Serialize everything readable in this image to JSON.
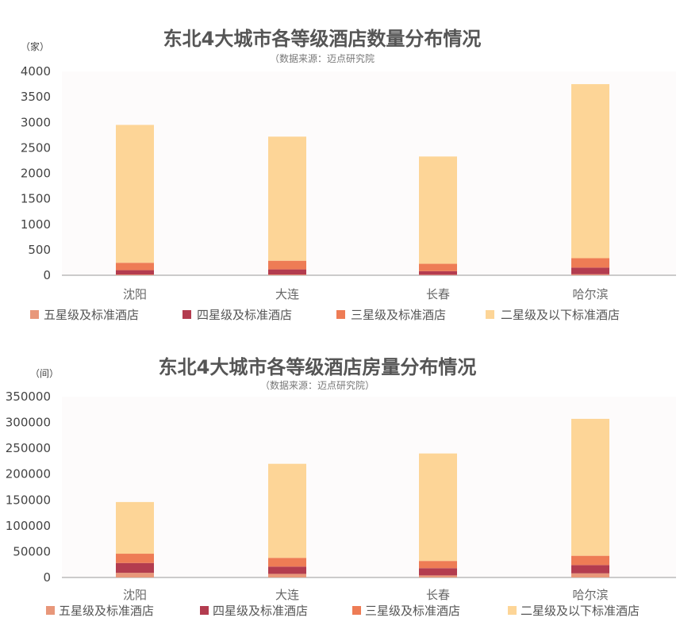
{
  "colors": {
    "five_star": "#E8977A",
    "four_star": "#B33C4F",
    "three_star": "#EE7C55",
    "two_star_below": "#FDD597",
    "axis": "#999999"
  },
  "chart_data": [
    {
      "type": "bar",
      "stacked": true,
      "title": "东北4大城市各等级酒店数量分布情况",
      "subtitle": "（数据来源：迈点研究院",
      "unit": "（家）",
      "categories": [
        "沈阳",
        "大连",
        "长春",
        "哈尔滨"
      ],
      "ylim": [
        0,
        4000
      ],
      "yticks": [
        "0",
        "500",
        "1000",
        "1500",
        "2000",
        "2500",
        "3000",
        "3500",
        "4000"
      ],
      "ytick_values": [
        0,
        500,
        1000,
        1500,
        2000,
        2500,
        3000,
        3500,
        4000
      ],
      "grid": false,
      "legend_position": "bottom",
      "series": [
        {
          "name": "五星级及标准酒店",
          "color_key": "five_star",
          "values": [
            15,
            15,
            10,
            20
          ]
        },
        {
          "name": "四星级及标准酒店",
          "color_key": "four_star",
          "values": [
            85,
            100,
            70,
            130
          ]
        },
        {
          "name": "三星级及标准酒店",
          "color_key": "three_star",
          "values": [
            145,
            170,
            145,
            185
          ]
        },
        {
          "name": "二星级及以下标准酒店",
          "color_key": "two_star_below",
          "values": [
            2705,
            2435,
            2105,
            3415
          ]
        }
      ]
    },
    {
      "type": "bar",
      "stacked": true,
      "title": "东北4大城市各等级酒店房量分布情况",
      "subtitle": "（数据来源：迈点研究院）",
      "unit": "（间）",
      "categories": [
        "沈阳",
        "大连",
        "长春",
        "哈尔滨"
      ],
      "ylim": [
        0,
        350000
      ],
      "yticks": [
        "0",
        "50000",
        "100000",
        "150000",
        "200000",
        "250000",
        "300000",
        "350000"
      ],
      "ytick_values": [
        0,
        50000,
        100000,
        150000,
        200000,
        250000,
        300000,
        350000
      ],
      "grid": false,
      "legend_position": "bottom",
      "series": [
        {
          "name": "五星级及标准酒店",
          "color_key": "five_star",
          "values": [
            9000,
            7000,
            4000,
            8000
          ]
        },
        {
          "name": "四星级及标准酒店",
          "color_key": "four_star",
          "values": [
            19000,
            14000,
            14000,
            16000
          ]
        },
        {
          "name": "三星级及标准酒店",
          "color_key": "three_star",
          "values": [
            18000,
            17000,
            14000,
            18000
          ]
        },
        {
          "name": "二星级及以下标准酒店",
          "color_key": "two_star_below",
          "values": [
            100000,
            182000,
            208000,
            265000
          ]
        }
      ]
    }
  ]
}
